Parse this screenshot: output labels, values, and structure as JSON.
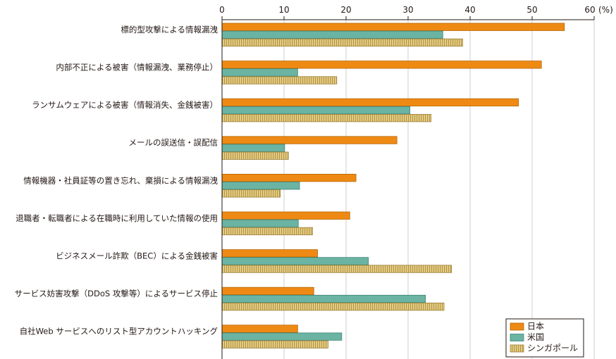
{
  "chart_data": {
    "type": "bar",
    "orientation": "horizontal",
    "categories": [
      "標的型攻撃による情報漏洩",
      "内部不正による被害（情報漏洩、業務停止）",
      "ランサムウェアによる被害（情報消失、金銭被害）",
      "メールの誤送信・誤配信",
      "情報機器・社員証等の置き忘れ、棄損による情報漏洩",
      "退職者・転職者による在職時に利用していた情報の使用",
      "ビジネスメール詐欺（BEC）による金銭被害",
      "サービス妨害攻撃（DDoS 攻撃等）によるサービス停止",
      "自社Web サービスへのリスト型アカウントハッキング"
    ],
    "series": [
      {
        "name": "日本",
        "values": [
          55.2,
          51.5,
          47.8,
          28.2,
          21.6,
          20.6,
          15.4,
          14.8,
          12.2
        ]
      },
      {
        "name": "米国",
        "values": [
          35.6,
          12.2,
          30.3,
          10.1,
          12.5,
          12.3,
          23.6,
          32.8,
          19.3
        ]
      },
      {
        "name": "シンガポール",
        "values": [
          38.8,
          18.5,
          33.7,
          10.7,
          9.4,
          14.6,
          37.0,
          35.8,
          17.1
        ]
      }
    ],
    "xlim": [
      0,
      60
    ],
    "xticks": [
      0,
      10,
      20,
      30,
      40,
      50,
      60
    ],
    "unit": "(%)",
    "grid": true,
    "legend": "bottom-right",
    "colors": {
      "日本": "#ee8a14",
      "米国": "#6bb3a3",
      "シンガポール": "#e3c97a"
    }
  }
}
